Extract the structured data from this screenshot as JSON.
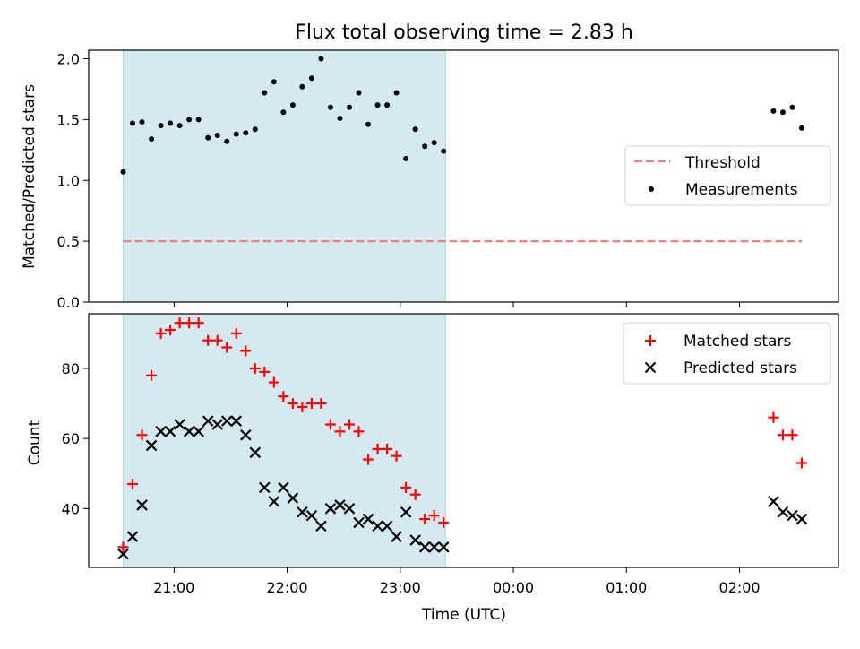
{
  "chart_data": [
    {
      "type": "scatter",
      "title": "Flux total observing time = 2.83 h",
      "xlabel": "",
      "ylabel": "Matched/Predicted stars",
      "ylim": [
        0.0,
        2.07
      ],
      "yticks": [
        "0.0",
        "0.5",
        "1.0",
        "1.5",
        "2.0"
      ],
      "shaded_interval": [
        "20:33",
        "23:24"
      ],
      "shade_color": "#d4e9f0",
      "threshold": {
        "value": 0.5,
        "from": "20:33",
        "to": "02:33",
        "color": "#f08080"
      },
      "legend": {
        "position": "center-right",
        "entries": [
          "Threshold",
          "Measurements"
        ]
      },
      "series": [
        {
          "name": "Measurements",
          "color": "#000000",
          "x": [
            "20:33",
            "20:38",
            "20:43",
            "20:48",
            "20:53",
            "20:58",
            "21:03",
            "21:08",
            "21:13",
            "21:18",
            "21:23",
            "21:28",
            "21:33",
            "21:38",
            "21:43",
            "21:48",
            "21:53",
            "21:58",
            "22:03",
            "22:08",
            "22:13",
            "22:18",
            "22:23",
            "22:28",
            "22:33",
            "22:38",
            "22:43",
            "22:48",
            "22:53",
            "22:58",
            "23:03",
            "23:08",
            "23:13",
            "23:18",
            "23:23",
            "02:18",
            "02:23",
            "02:28",
            "02:33"
          ],
          "y": [
            1.07,
            1.47,
            1.48,
            1.34,
            1.45,
            1.47,
            1.45,
            1.5,
            1.5,
            1.35,
            1.37,
            1.32,
            1.38,
            1.39,
            1.42,
            1.72,
            1.81,
            1.56,
            1.62,
            1.77,
            1.84,
            2.0,
            1.6,
            1.51,
            1.6,
            1.72,
            1.46,
            1.62,
            1.62,
            1.72,
            1.18,
            1.42,
            1.28,
            1.31,
            1.24,
            1.57,
            1.56,
            1.6,
            1.43
          ]
        }
      ]
    },
    {
      "type": "scatter",
      "title": "",
      "xlabel": "Time (UTC)",
      "ylabel": "Count",
      "ylim": [
        23.2,
        95.6
      ],
      "yticks": [
        "40",
        "60",
        "80"
      ],
      "xticks": [
        "21:00",
        "22:00",
        "23:00",
        "00:00",
        "01:00",
        "02:00"
      ],
      "shaded_interval": [
        "20:33",
        "23:24"
      ],
      "legend": {
        "position": "top-right",
        "entries": [
          "Matched stars",
          "Predicted stars"
        ]
      },
      "x": [
        "20:33",
        "20:38",
        "20:43",
        "20:48",
        "20:53",
        "20:58",
        "21:03",
        "21:08",
        "21:13",
        "21:18",
        "21:23",
        "21:28",
        "21:33",
        "21:38",
        "21:43",
        "21:48",
        "21:53",
        "21:58",
        "22:03",
        "22:08",
        "22:13",
        "22:18",
        "22:23",
        "22:28",
        "22:33",
        "22:38",
        "22:43",
        "22:48",
        "22:53",
        "22:58",
        "23:03",
        "23:08",
        "23:13",
        "23:18",
        "23:23",
        "02:18",
        "02:23",
        "02:28",
        "02:33"
      ],
      "series": [
        {
          "name": "Matched stars",
          "color": "#ff0000",
          "values": [
            29,
            47,
            61,
            78,
            90,
            91,
            93,
            93,
            93,
            88,
            88,
            86,
            90,
            85,
            80,
            79,
            76,
            72,
            70,
            69,
            70,
            70,
            64,
            62,
            64,
            62,
            54,
            57,
            57,
            55,
            46,
            44,
            37,
            38,
            36,
            66,
            61,
            61,
            53
          ]
        },
        {
          "name": "Predicted stars",
          "color": "#000000",
          "values": [
            27,
            32,
            41,
            58,
            62,
            62,
            64,
            62,
            62,
            65,
            64,
            65,
            65,
            61,
            56,
            46,
            42,
            46,
            43,
            39,
            38,
            35,
            40,
            41,
            40,
            36,
            37,
            35,
            35,
            32,
            39,
            31,
            29,
            29,
            29,
            42,
            39,
            38,
            37
          ]
        }
      ]
    }
  ]
}
